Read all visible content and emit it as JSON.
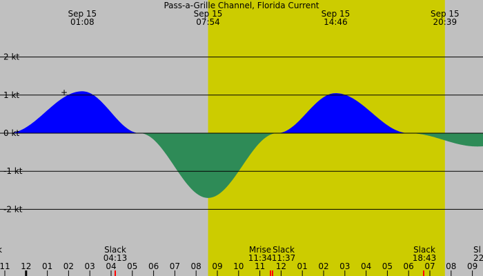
{
  "chart_data": {
    "type": "area",
    "title": "Pass-a-Grille Channel, Florida Current",
    "ylabel": "",
    "xlabel": "",
    "ylim": [
      -2,
      2
    ],
    "y_ticks": [
      "2 kt",
      "1 kt",
      "0 kt",
      "-1 kt",
      "-2 kt"
    ],
    "y_tick_values": [
      2,
      1,
      0,
      -1,
      -2
    ],
    "x_range_hours": [
      20.7,
      33.6
    ],
    "day_band": [
      7.9,
      20.65
    ],
    "hour_ticks": [
      {
        "h": 23,
        "label": "11"
      },
      {
        "h": 24,
        "label": "12"
      },
      {
        "h": 25,
        "label": "01"
      },
      {
        "h": 26,
        "label": "02"
      },
      {
        "h": 27,
        "label": "03"
      },
      {
        "h": 28,
        "label": "04"
      },
      {
        "h": 29,
        "label": "05"
      },
      {
        "h": 30,
        "label": "06"
      },
      {
        "h": 31,
        "label": "07"
      },
      {
        "h": 32,
        "label": "08"
      },
      {
        "h": 33,
        "label": "09"
      },
      {
        "h": 34,
        "label": "10"
      },
      {
        "h": 35,
        "label": "11"
      },
      {
        "h": 36,
        "label": "12"
      },
      {
        "h": 37,
        "label": "01"
      },
      {
        "h": 38,
        "label": "02"
      },
      {
        "h": 39,
        "label": "03"
      },
      {
        "h": 40,
        "label": "04"
      },
      {
        "h": 41,
        "label": "05"
      },
      {
        "h": 42,
        "label": "06"
      },
      {
        "h": 43,
        "label": "07"
      },
      {
        "h": 44,
        "label": "08"
      },
      {
        "h": 45,
        "label": "09"
      }
    ],
    "top_labels": [
      {
        "date": "Sep 15",
        "time": "01:08",
        "h": 1.133
      },
      {
        "date": "Sep 15",
        "time": "07:54",
        "h": 7.9
      },
      {
        "date": "Sep 15",
        "time": "14:46",
        "h": 14.767
      },
      {
        "date": "Sep 15",
        "time": "20:39",
        "h": 20.65
      }
    ],
    "bottom_events": [
      {
        "label": "k",
        "time": "",
        "h": 0.0,
        "anchor": "start"
      },
      {
        "label": "Slack",
        "time": "04:13",
        "h": 4.217
      },
      {
        "label": "Mrise",
        "time": "11:34",
        "h": 11.567
      },
      {
        "label": "Slack",
        "time": "11:37",
        "h": 11.617
      },
      {
        "label": "Slack",
        "time": "18:43",
        "h": 18.717
      },
      {
        "label": "Sl",
        "time": "22",
        "h": 22.2,
        "anchor": "start"
      }
    ],
    "event_markers_h": [
      4.217,
      11.567,
      11.617,
      18.717
    ],
    "current_points": [
      {
        "time": "21:08",
        "h": -2.867,
        "kt": 0.0
      },
      {
        "time": "01:08",
        "h": 1.133,
        "kt": 1.1
      },
      {
        "time": "04:13",
        "h": 4.217,
        "kt": 0.0
      },
      {
        "time": "07:54",
        "h": 7.9,
        "kt": -1.7
      },
      {
        "time": "11:37",
        "h": 11.617,
        "kt": 0.0
      },
      {
        "time": "14:46",
        "h": 14.767,
        "kt": 1.05
      },
      {
        "time": "18:43",
        "h": 18.717,
        "kt": 0.0
      },
      {
        "time": "22:24",
        "h": 22.4,
        "kt": -0.35
      },
      {
        "time": "02:05",
        "h": 26.083,
        "kt": 0.0
      }
    ],
    "colors": {
      "background": "#c0c0c0",
      "day": "#cccc00",
      "flood": "#0000ff",
      "ebb": "#2e8b57",
      "grid": "#000000",
      "marker": "#ff0000"
    }
  }
}
